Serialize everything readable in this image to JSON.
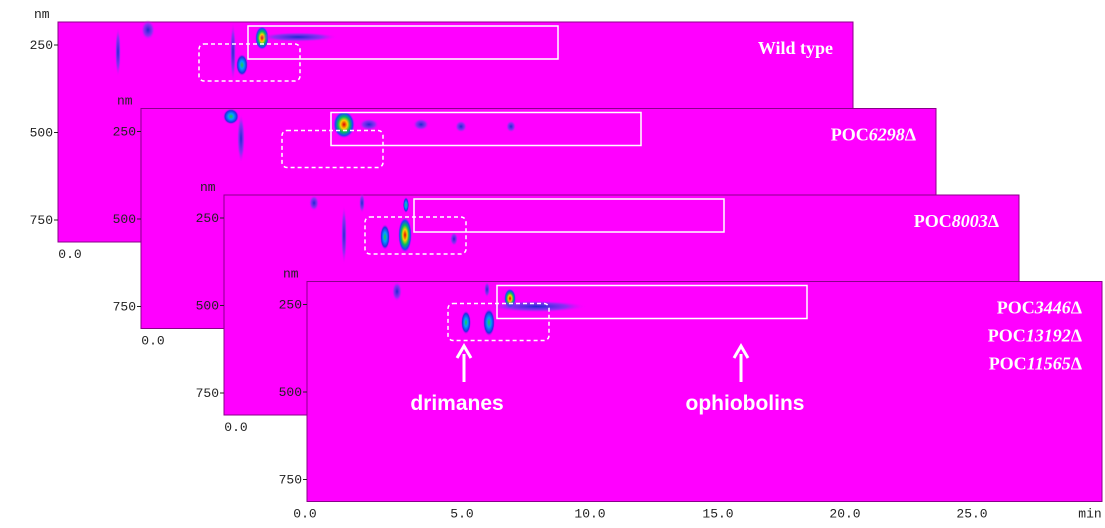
{
  "panels": [
    {
      "unit": "nm",
      "yticks": [
        "250",
        "500",
        "750"
      ],
      "xticks": [
        "0.0"
      ],
      "labels": [
        {
          "text": "Wild type"
        }
      ]
    },
    {
      "unit": "nm",
      "yticks": [
        "250",
        "500",
        "750"
      ],
      "xticks": [
        "0.0"
      ],
      "labels": [
        {
          "prefix": "POC",
          "italic": "6298",
          "suffix": "Δ"
        }
      ]
    },
    {
      "unit": "nm",
      "yticks": [
        "250",
        "500",
        "750"
      ],
      "xticks": [
        "0.0"
      ],
      "labels": [
        {
          "prefix": "POC",
          "italic": "8003",
          "suffix": "Δ"
        }
      ]
    },
    {
      "unit": "nm",
      "yticks": [
        "250",
        "500",
        "750"
      ],
      "xticks": [
        "0.0",
        "5.0",
        "10.0",
        "15.0",
        "20.0",
        "25.0"
      ],
      "xunit": "min",
      "labels": [
        {
          "prefix": "POC",
          "italic": "3446",
          "suffix": "Δ"
        },
        {
          "prefix": "POC",
          "italic": "13192",
          "suffix": "Δ"
        },
        {
          "prefix": "POC",
          "italic": "11565",
          "suffix": "Δ"
        }
      ]
    }
  ],
  "annotations": {
    "left": "drimanes",
    "right": "ophiobolins"
  }
}
